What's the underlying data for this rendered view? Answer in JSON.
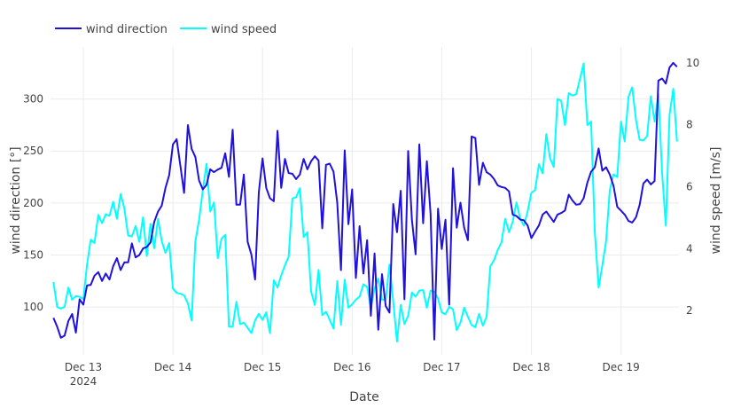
{
  "chart_data": {
    "type": "line",
    "legend": {
      "placement": "top-left",
      "orientation": "horizontal"
    },
    "grid": true,
    "xlabel": "Date",
    "ylabel": "wind direction [°]",
    "y2label": "wind speed [m/s]",
    "xlim": [
      "2024-12-12 15:13",
      "2024-12-19 15:31"
    ],
    "ylim": [
      54,
      350
    ],
    "y2lim": [
      0.57,
      10.51
    ],
    "xticks": [
      {
        "value": "2024-12-13 00:00",
        "label": "Dec 13",
        "sublabel": "2024"
      },
      {
        "value": "2024-12-14 00:00",
        "label": "Dec 14"
      },
      {
        "value": "2024-12-15 00:00",
        "label": "Dec 15"
      },
      {
        "value": "2024-12-16 00:00",
        "label": "Dec 16"
      },
      {
        "value": "2024-12-17 00:00",
        "label": "Dec 17"
      },
      {
        "value": "2024-12-18 00:00",
        "label": "Dec 18"
      },
      {
        "value": "2024-12-19 00:00",
        "label": "Dec 19"
      }
    ],
    "yticks": [
      "100",
      "150",
      "200",
      "250",
      "300"
    ],
    "y2ticks": [
      "2",
      "4",
      "6",
      "8",
      "10"
    ],
    "x": [
      "2024-12-12 16:00",
      "2024-12-12 17:00",
      "2024-12-12 18:00",
      "2024-12-12 19:00",
      "2024-12-12 20:00",
      "2024-12-12 21:00",
      "2024-12-12 22:00",
      "2024-12-12 23:00",
      "2024-12-13 00:00",
      "2024-12-13 01:00",
      "2024-12-13 02:00",
      "2024-12-13 03:00",
      "2024-12-13 04:00",
      "2024-12-13 05:00",
      "2024-12-13 06:00",
      "2024-12-13 07:00",
      "2024-12-13 08:00",
      "2024-12-13 09:00",
      "2024-12-13 10:00",
      "2024-12-13 11:00",
      "2024-12-13 12:00",
      "2024-12-13 13:00",
      "2024-12-13 14:00",
      "2024-12-13 15:00",
      "2024-12-13 16:00",
      "2024-12-13 17:00",
      "2024-12-13 18:00",
      "2024-12-13 19:00",
      "2024-12-13 20:00",
      "2024-12-13 21:00",
      "2024-12-13 22:00",
      "2024-12-13 23:00",
      "2024-12-14 00:00",
      "2024-12-14 01:00",
      "2024-12-14 02:00",
      "2024-12-14 03:00",
      "2024-12-14 04:00",
      "2024-12-14 05:00",
      "2024-12-14 06:00",
      "2024-12-14 07:00",
      "2024-12-14 08:00",
      "2024-12-14 09:00",
      "2024-12-14 10:00",
      "2024-12-14 11:00",
      "2024-12-14 12:00",
      "2024-12-14 13:00",
      "2024-12-14 14:00",
      "2024-12-14 15:00",
      "2024-12-14 16:00",
      "2024-12-14 17:00",
      "2024-12-14 18:00",
      "2024-12-14 19:00",
      "2024-12-14 20:00",
      "2024-12-14 21:00",
      "2024-12-14 22:00",
      "2024-12-14 23:00",
      "2024-12-15 00:00",
      "2024-12-15 01:00",
      "2024-12-15 02:00",
      "2024-12-15 03:00",
      "2024-12-15 04:00",
      "2024-12-15 05:00",
      "2024-12-15 06:00",
      "2024-12-15 07:00",
      "2024-12-15 08:00",
      "2024-12-15 09:00",
      "2024-12-15 10:00",
      "2024-12-15 11:00",
      "2024-12-15 12:00",
      "2024-12-15 13:00",
      "2024-12-15 14:00",
      "2024-12-15 15:00",
      "2024-12-15 16:00",
      "2024-12-15 17:00",
      "2024-12-15 18:00",
      "2024-12-15 19:00",
      "2024-12-15 20:00",
      "2024-12-15 21:00",
      "2024-12-15 22:00",
      "2024-12-15 23:00",
      "2024-12-16 00:00",
      "2024-12-16 01:00",
      "2024-12-16 02:00",
      "2024-12-16 03:00",
      "2024-12-16 04:00",
      "2024-12-16 05:00",
      "2024-12-16 06:00",
      "2024-12-16 07:00",
      "2024-12-16 08:00",
      "2024-12-16 09:00",
      "2024-12-16 10:00",
      "2024-12-16 11:00",
      "2024-12-16 12:00",
      "2024-12-16 13:00",
      "2024-12-16 14:00",
      "2024-12-16 15:00",
      "2024-12-16 16:00",
      "2024-12-16 17:00",
      "2024-12-16 18:00",
      "2024-12-16 19:00",
      "2024-12-16 20:00",
      "2024-12-16 21:00",
      "2024-12-16 22:00",
      "2024-12-16 23:00",
      "2024-12-17 00:00",
      "2024-12-17 01:00",
      "2024-12-17 02:00",
      "2024-12-17 03:00",
      "2024-12-17 04:00",
      "2024-12-17 05:00",
      "2024-12-17 06:00",
      "2024-12-17 07:00",
      "2024-12-17 08:00",
      "2024-12-17 09:00",
      "2024-12-17 10:00",
      "2024-12-17 11:00",
      "2024-12-17 12:00",
      "2024-12-17 13:00",
      "2024-12-17 14:00",
      "2024-12-17 15:00",
      "2024-12-17 16:00",
      "2024-12-17 17:00",
      "2024-12-17 18:00",
      "2024-12-17 19:00",
      "2024-12-17 20:00",
      "2024-12-17 21:00",
      "2024-12-17 22:00",
      "2024-12-17 23:00",
      "2024-12-18 00:00",
      "2024-12-18 01:00",
      "2024-12-18 02:00",
      "2024-12-18 03:00",
      "2024-12-18 04:00",
      "2024-12-18 05:00",
      "2024-12-18 06:00",
      "2024-12-18 07:00",
      "2024-12-18 08:00",
      "2024-12-18 09:00",
      "2024-12-18 10:00",
      "2024-12-18 11:00",
      "2024-12-18 12:00",
      "2024-12-18 13:00",
      "2024-12-18 14:00",
      "2024-12-18 15:00",
      "2024-12-18 16:00",
      "2024-12-18 17:00",
      "2024-12-18 18:00",
      "2024-12-18 19:00",
      "2024-12-18 20:00",
      "2024-12-18 21:00",
      "2024-12-18 22:00",
      "2024-12-18 23:00",
      "2024-12-19 00:00",
      "2024-12-19 01:00",
      "2024-12-19 02:00",
      "2024-12-19 03:00",
      "2024-12-19 04:00",
      "2024-12-19 05:00",
      "2024-12-19 06:00",
      "2024-12-19 07:00",
      "2024-12-19 08:00",
      "2024-12-19 09:00",
      "2024-12-19 10:00",
      "2024-12-19 11:00",
      "2024-12-19 12:00",
      "2024-12-19 13:00",
      "2024-12-19 14:00",
      "2024-12-19 15:00"
    ],
    "series": [
      {
        "name": "wind direction",
        "axis": "left",
        "color": "#2011DC",
        "values": [
          89.5,
          81,
          70.4,
          72.4,
          86.6,
          93.2,
          75.3,
          107.4,
          102.3,
          120.7,
          121.3,
          130.1,
          133.5,
          125,
          132.1,
          126.4,
          139.2,
          146.9,
          135.5,
          142.9,
          142.9,
          161.1,
          147.7,
          150,
          156.3,
          157.7,
          162,
          181.8,
          191.8,
          197.5,
          214.5,
          226.8,
          256.3,
          261.4,
          235.8,
          209.7,
          274.9,
          252.1,
          244.3,
          221.6,
          213.1,
          217.4,
          232.4,
          229.6,
          232.1,
          233.8,
          247.8,
          225.1,
          270.5,
          198.3,
          198.3,
          227.3,
          162.6,
          150.6,
          126.4,
          210.3,
          242.9,
          214.5,
          204.6,
          201.7,
          269.4,
          214.5,
          242.4,
          228.7,
          228.1,
          223,
          227.3,
          242.4,
          232.4,
          240.1,
          244.9,
          240.9,
          175.6,
          236.7,
          237.8,
          230.1,
          200.3,
          135.5,
          250.6,
          179.6,
          213.1,
          127.9,
          177.7,
          132.1,
          164.2,
          91.5,
          151.4,
          78.1,
          131.5,
          100.9,
          94.6,
          199,
          171.9,
          211.7,
          107.4,
          250,
          184.2,
          150.6,
          256.3,
          180.5,
          240.1,
          189.5,
          68.7,
          194.6,
          155.8,
          183.9,
          102.3,
          233.5,
          176.2,
          200.3,
          176.2,
          164.2,
          263.9,
          262.5,
          217.4,
          238.7,
          229.6,
          227.3,
          223,
          216.8,
          215.4,
          214.5,
          211.1,
          188.9,
          187.5,
          184.1,
          183.3,
          178.4,
          166.2,
          172.5,
          178.4,
          188.9,
          191.8,
          186.7,
          181.8,
          188.9,
          190.4,
          192.7,
          208,
          202.3,
          198.3,
          198.9,
          204.6,
          219.6,
          230.1,
          234.4,
          252.4,
          231,
          234.4,
          227.3,
          216.5,
          196.3,
          192.7,
          188.9,
          182.7,
          181.2,
          186.1,
          198.3,
          218.8,
          222.5,
          217.9,
          221.1,
          317.7,
          319.7,
          314.8,
          330.4,
          334.7,
          331
        ]
      },
      {
        "name": "wind speed",
        "axis": "right",
        "color": "#00FFFF",
        "values": [
          2.92,
          2.12,
          2.06,
          2.12,
          2.74,
          2.35,
          2.47,
          2.44,
          2.37,
          3.48,
          4.29,
          4.18,
          5.09,
          4.82,
          5.11,
          5.06,
          5.51,
          4.96,
          5.76,
          5.3,
          4.42,
          4.39,
          4.73,
          4.22,
          5.01,
          3.76,
          4.8,
          4.01,
          4.96,
          4.24,
          3.86,
          4.18,
          2.71,
          2.57,
          2.54,
          2.49,
          2.23,
          1.68,
          4.24,
          4.92,
          5.88,
          6.74,
          5.2,
          5.49,
          3.69,
          4.32,
          4.44,
          1.48,
          1.48,
          2.28,
          1.56,
          1.61,
          1.44,
          1.27,
          1.68,
          1.89,
          1.7,
          1.94,
          1.27,
          2.98,
          2.74,
          3.14,
          3.46,
          3.74,
          5.62,
          5.66,
          5.95,
          4.37,
          4.53,
          2.61,
          2.18,
          3.31,
          1.85,
          1.96,
          1.7,
          1.42,
          2.95,
          1.54,
          3.0,
          2.09,
          2.2,
          2.35,
          2.45,
          2.85,
          2.76,
          2.09,
          2.71,
          3.03,
          2.35,
          2.35,
          3.48,
          2.28,
          1.0,
          2.18,
          1.56,
          1.83,
          2.58,
          2.45,
          2.64,
          2.66,
          2.09,
          2.64,
          2.61,
          2.39,
          1.94,
          1.88,
          2.12,
          2.04,
          1.37,
          1.61,
          2.09,
          1.8,
          1.53,
          1.46,
          1.89,
          1.51,
          1.8,
          3.43,
          3.62,
          3.96,
          4.2,
          4.96,
          4.53,
          4.87,
          5.49,
          4.96,
          4.74,
          5.2,
          5.8,
          5.89,
          6.72,
          6.43,
          7.7,
          6.91,
          6.64,
          8.83,
          8.77,
          7.99,
          9.02,
          8.94,
          8.99,
          9.47,
          9.98,
          7.99,
          8.1,
          4.53,
          2.74,
          3.46,
          4.24,
          5.89,
          6.4,
          6.31,
          8.1,
          7.46,
          8.9,
          9.21,
          8.16,
          7.51,
          7.49,
          7.63,
          8.92,
          8.1,
          8.99,
          6.45,
          4.74,
          8.32,
          9.16,
          7.46
        ]
      }
    ]
  }
}
